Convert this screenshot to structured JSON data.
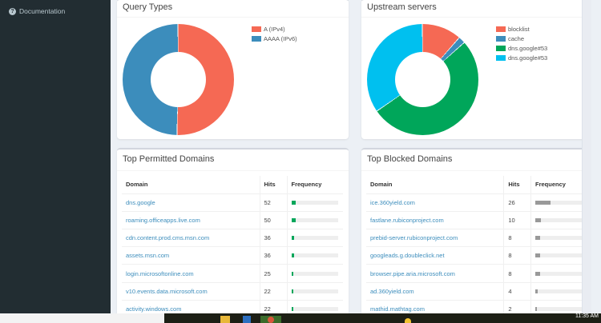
{
  "sidebar": {
    "items": [
      {
        "label": "Documentation",
        "icon": "question-circle-icon"
      }
    ]
  },
  "query_types": {
    "title": "Query Types",
    "legend": [
      {
        "label": "A (IPv4)",
        "color": "#f56954"
      },
      {
        "label": "AAAA (IPv6)",
        "color": "#3c8dbc"
      }
    ]
  },
  "upstream": {
    "title": "Upstream servers",
    "legend": [
      {
        "label": "blocklist",
        "color": "#f56954"
      },
      {
        "label": "cache",
        "color": "#3c8dbc"
      },
      {
        "label": "dns.google#53",
        "color": "#00a65a"
      },
      {
        "label": "dns.google#53",
        "color": "#00c0ef"
      }
    ]
  },
  "permitted": {
    "title": "Top Permitted Domains",
    "headers": {
      "domain": "Domain",
      "hits": "Hits",
      "frequency": "Frequency"
    },
    "rows": [
      {
        "domain": "dns.google",
        "hits": "52",
        "pct": 9.5
      },
      {
        "domain": "roaming.officeapps.live.com",
        "hits": "50",
        "pct": 9
      },
      {
        "domain": "cdn.content.prod.cms.msn.com",
        "hits": "36",
        "pct": 6.5
      },
      {
        "domain": "assets.msn.com",
        "hits": "36",
        "pct": 6.5
      },
      {
        "domain": "login.microsoftonline.com",
        "hits": "25",
        "pct": 4.5
      },
      {
        "domain": "v10.events.data.microsoft.com",
        "hits": "22",
        "pct": 4
      },
      {
        "domain": "activity.windows.com",
        "hits": "22",
        "pct": 4
      }
    ],
    "bar_color": "#00a65a"
  },
  "blocked": {
    "title": "Top Blocked Domains",
    "headers": {
      "domain": "Domain",
      "hits": "Hits",
      "frequency": "Frequency"
    },
    "rows": [
      {
        "domain": "ice.360yield.com",
        "hits": "26",
        "pct": 33
      },
      {
        "domain": "fastlane.rubiconproject.com",
        "hits": "10",
        "pct": 12.5
      },
      {
        "domain": "prebid-server.rubiconproject.com",
        "hits": "8",
        "pct": 10
      },
      {
        "domain": "googleads.g.doubleclick.net",
        "hits": "8",
        "pct": 10
      },
      {
        "domain": "browser.pipe.aria.microsoft.com",
        "hits": "8",
        "pct": 10
      },
      {
        "domain": "ad.360yield.com",
        "hits": "4",
        "pct": 5
      },
      {
        "domain": "mathid.mathtag.com",
        "hits": "2",
        "pct": 2.5
      }
    ],
    "bar_color": "#999999"
  },
  "taskbar": {
    "clock": "11:35 AM"
  },
  "chart_data": [
    {
      "type": "pie",
      "title": "Query Types",
      "categories": [
        "A (IPv4)",
        "AAAA (IPv6)"
      ],
      "values": [
        50.5,
        49.5
      ],
      "colors": [
        "#f56954",
        "#3c8dbc"
      ],
      "legend_position": "right"
    },
    {
      "type": "pie",
      "title": "Upstream servers",
      "categories": [
        "blocklist",
        "cache",
        "dns.google#53",
        "dns.google#53"
      ],
      "values": [
        11.5,
        2,
        52,
        34.5
      ],
      "colors": [
        "#f56954",
        "#3c8dbc",
        "#00a65a",
        "#00c0ef"
      ],
      "legend_position": "right"
    }
  ]
}
